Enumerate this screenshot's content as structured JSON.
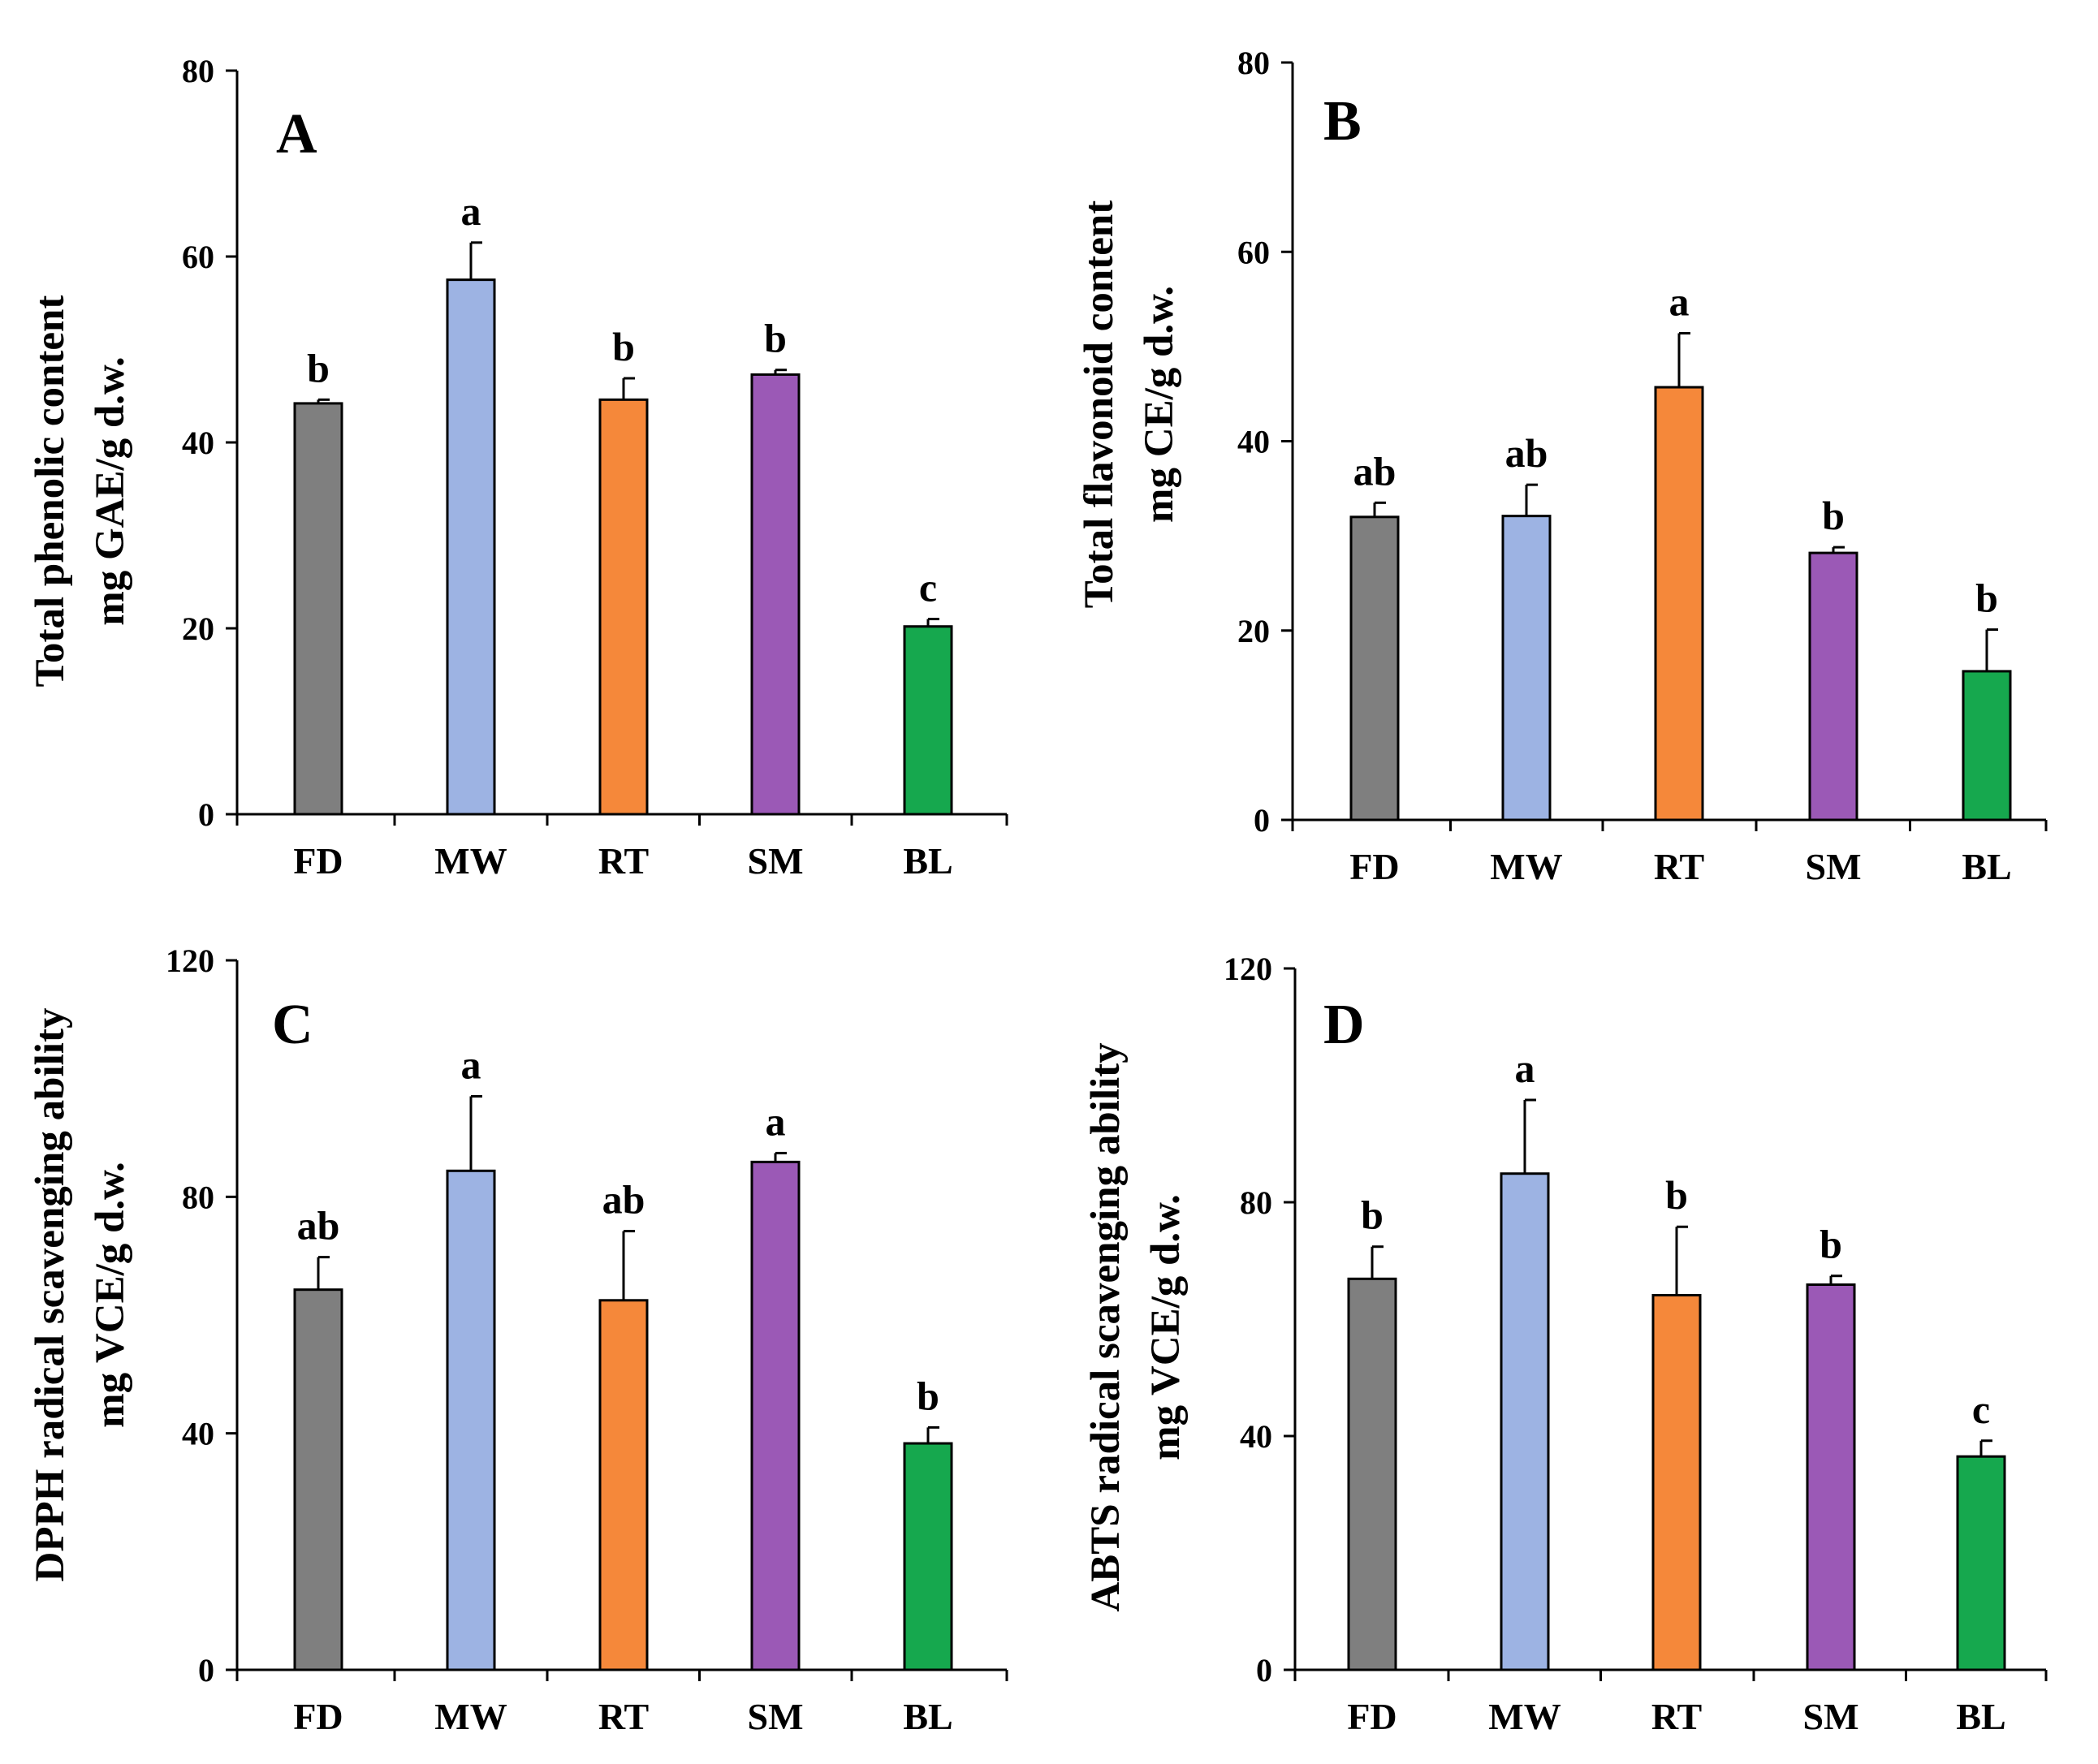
{
  "chart_data": [
    {
      "type": "bar",
      "panel_label": "A",
      "categories": [
        "FD",
        "MW",
        "RT",
        "SM",
        "BL"
      ],
      "values": [
        44.2,
        57.5,
        44.6,
        47.3,
        20.2
      ],
      "errors": [
        0.4,
        4.0,
        2.3,
        0.5,
        0.8
      ],
      "significance": [
        "b",
        "a",
        "b",
        "b",
        "c"
      ],
      "colors": [
        "#7f7f7f",
        "#9db3e3",
        "#f5883a",
        "#9b59b6",
        "#16a84e"
      ],
      "ylabel_line1": "Total phenolic content",
      "ylabel_line2": "mg GAE/g d.w.",
      "ylim": [
        0,
        80
      ],
      "yticks": [
        0,
        20,
        40,
        60,
        80
      ]
    },
    {
      "type": "bar",
      "panel_label": "B",
      "categories": [
        "FD",
        "MW",
        "RT",
        "SM",
        "BL"
      ],
      "values": [
        32.0,
        32.1,
        45.7,
        28.2,
        15.7
      ],
      "errors": [
        1.5,
        3.3,
        5.7,
        0.6,
        4.4
      ],
      "significance": [
        "ab",
        "ab",
        "a",
        "b",
        "b"
      ],
      "colors": [
        "#7f7f7f",
        "#9db3e3",
        "#f5883a",
        "#9b59b6",
        "#16a84e"
      ],
      "ylabel_line1": "Total flavonoid content",
      "ylabel_line2": "mg CE/g d.w.",
      "ylim": [
        0,
        80
      ],
      "yticks": [
        0,
        20,
        40,
        60,
        80
      ]
    },
    {
      "type": "bar",
      "panel_label": "C",
      "categories": [
        "FD",
        "MW",
        "RT",
        "SM",
        "BL"
      ],
      "values": [
        64.3,
        84.4,
        62.5,
        85.9,
        38.3
      ],
      "errors": [
        5.5,
        12.6,
        11.7,
        1.5,
        2.7
      ],
      "significance": [
        "ab",
        "a",
        "ab",
        "a",
        "b"
      ],
      "colors": [
        "#7f7f7f",
        "#9db3e3",
        "#f5883a",
        "#9b59b6",
        "#16a84e"
      ],
      "ylabel_line1": "DPPH radical scavenging ability",
      "ylabel_line2": "mg VCE/g d.w.",
      "ylim": [
        0,
        120
      ],
      "yticks": [
        0,
        40,
        80,
        120
      ]
    },
    {
      "type": "bar",
      "panel_label": "D",
      "categories": [
        "FD",
        "MW",
        "RT",
        "SM",
        "BL"
      ],
      "values": [
        66.9,
        84.9,
        64.1,
        65.9,
        36.5
      ],
      "errors": [
        5.5,
        12.6,
        11.7,
        1.5,
        2.7
      ],
      "significance": [
        "b",
        "a",
        "b",
        "b",
        "c"
      ],
      "colors": [
        "#7f7f7f",
        "#9db3e3",
        "#f5883a",
        "#9b59b6",
        "#16a84e"
      ],
      "ylabel_line1": "ABTS radical scavenging ability",
      "ylabel_line2": "mg VCE/g d.w.",
      "ylim": [
        0,
        120
      ],
      "yticks": [
        0,
        40,
        80,
        120
      ]
    }
  ]
}
